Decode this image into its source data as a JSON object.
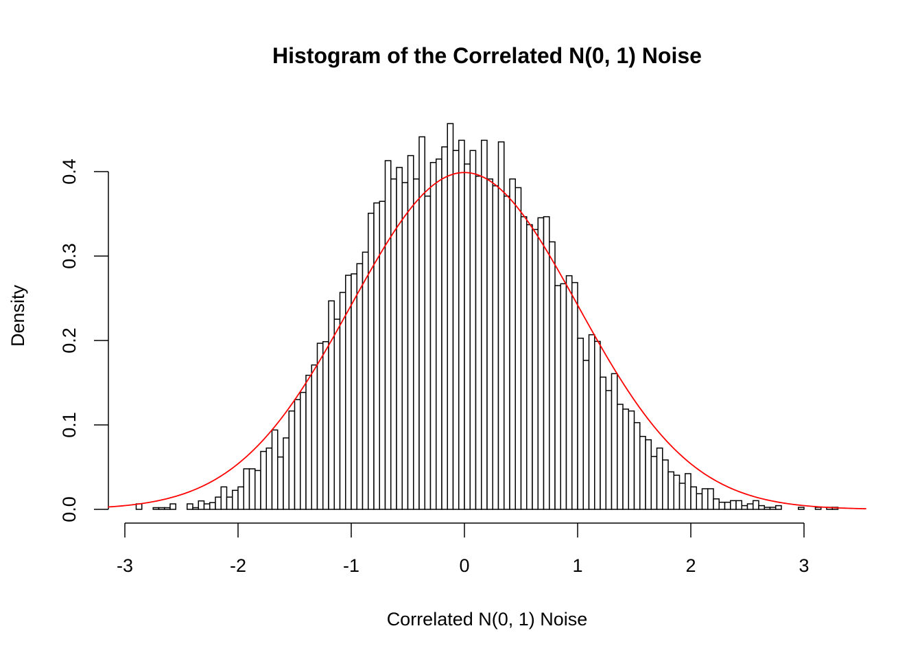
{
  "chart_data": {
    "type": "bar",
    "subtype": "histogram",
    "title": "Histogram of the Correlated N(0, 1) Noise",
    "xlabel": "Correlated N(0, 1) Noise",
    "ylabel": "Density",
    "xlim": [
      -3.15,
      3.55
    ],
    "ylim": [
      0,
      0.46
    ],
    "xticks": [
      "-3",
      "-2",
      "-1",
      "0",
      "1",
      "2",
      "3"
    ],
    "yticks": [
      "0.0",
      "0.1",
      "0.2",
      "0.3",
      "0.4"
    ],
    "grid": false,
    "bar_fill": "#ffffff",
    "bar_stroke": "#000000",
    "bin_start": -2.9,
    "bin_width": 0.05,
    "densities": [
      0.0065,
      0,
      0,
      0.002,
      0.002,
      0.002,
      0.0065,
      0,
      0,
      0.0065,
      0.002,
      0.01,
      0.0065,
      0.008,
      0.0145,
      0.0266,
      0.0145,
      0.0225,
      0.0266,
      0.048,
      0.048,
      0.046,
      0.0686,
      0.0726,
      0.094,
      0.062,
      0.0846,
      0.1165,
      0.13,
      0.1385,
      0.1588,
      0.171,
      0.1967,
      0.1986,
      0.2469,
      0.2252,
      0.2569,
      0.2772,
      0.2789,
      0.291,
      0.3046,
      0.3507,
      0.3629,
      0.3648,
      0.413,
      0.3913,
      0.4049,
      0.387,
      0.419,
      0.3913,
      0.4412,
      0.371,
      0.4108,
      0.4149,
      0.4293,
      0.4569,
      0.425,
      0.4371,
      0.409,
      0.425,
      0.3946,
      0.4371,
      0.3913,
      0.3832,
      0.4352,
      0.371,
      0.3913,
      0.381,
      0.3466,
      0.3371,
      0.3314,
      0.3453,
      0.3466,
      0.3168,
      0.265,
      0.2672,
      0.2767,
      0.2686,
      0.2027,
      0.1764,
      0.2068,
      0.1989,
      0.1566,
      0.1407,
      0.1607,
      0.1244,
      0.1187,
      0.1165,
      0.1027,
      0.0864,
      0.0824,
      0.0626,
      0.0726,
      0.0585,
      0.0444,
      0.0404,
      0.0309,
      0.0423,
      0.0266,
      0.0185,
      0.0244,
      0.0244,
      0.0124,
      0.0084,
      0.0084,
      0.0103,
      0.0103,
      0.0044,
      0.0065,
      0.0103,
      0.0044,
      0.0024,
      0.0024,
      0.0044,
      0,
      0,
      0,
      0.0024,
      0,
      0,
      0.0024,
      0,
      0.0024,
      0.0024
    ],
    "overlay_curve": {
      "type": "line",
      "function": "dnorm",
      "mean": 0,
      "sd": 1,
      "x_range": [
        -3.15,
        3.55
      ],
      "color": "#ff0000"
    }
  }
}
